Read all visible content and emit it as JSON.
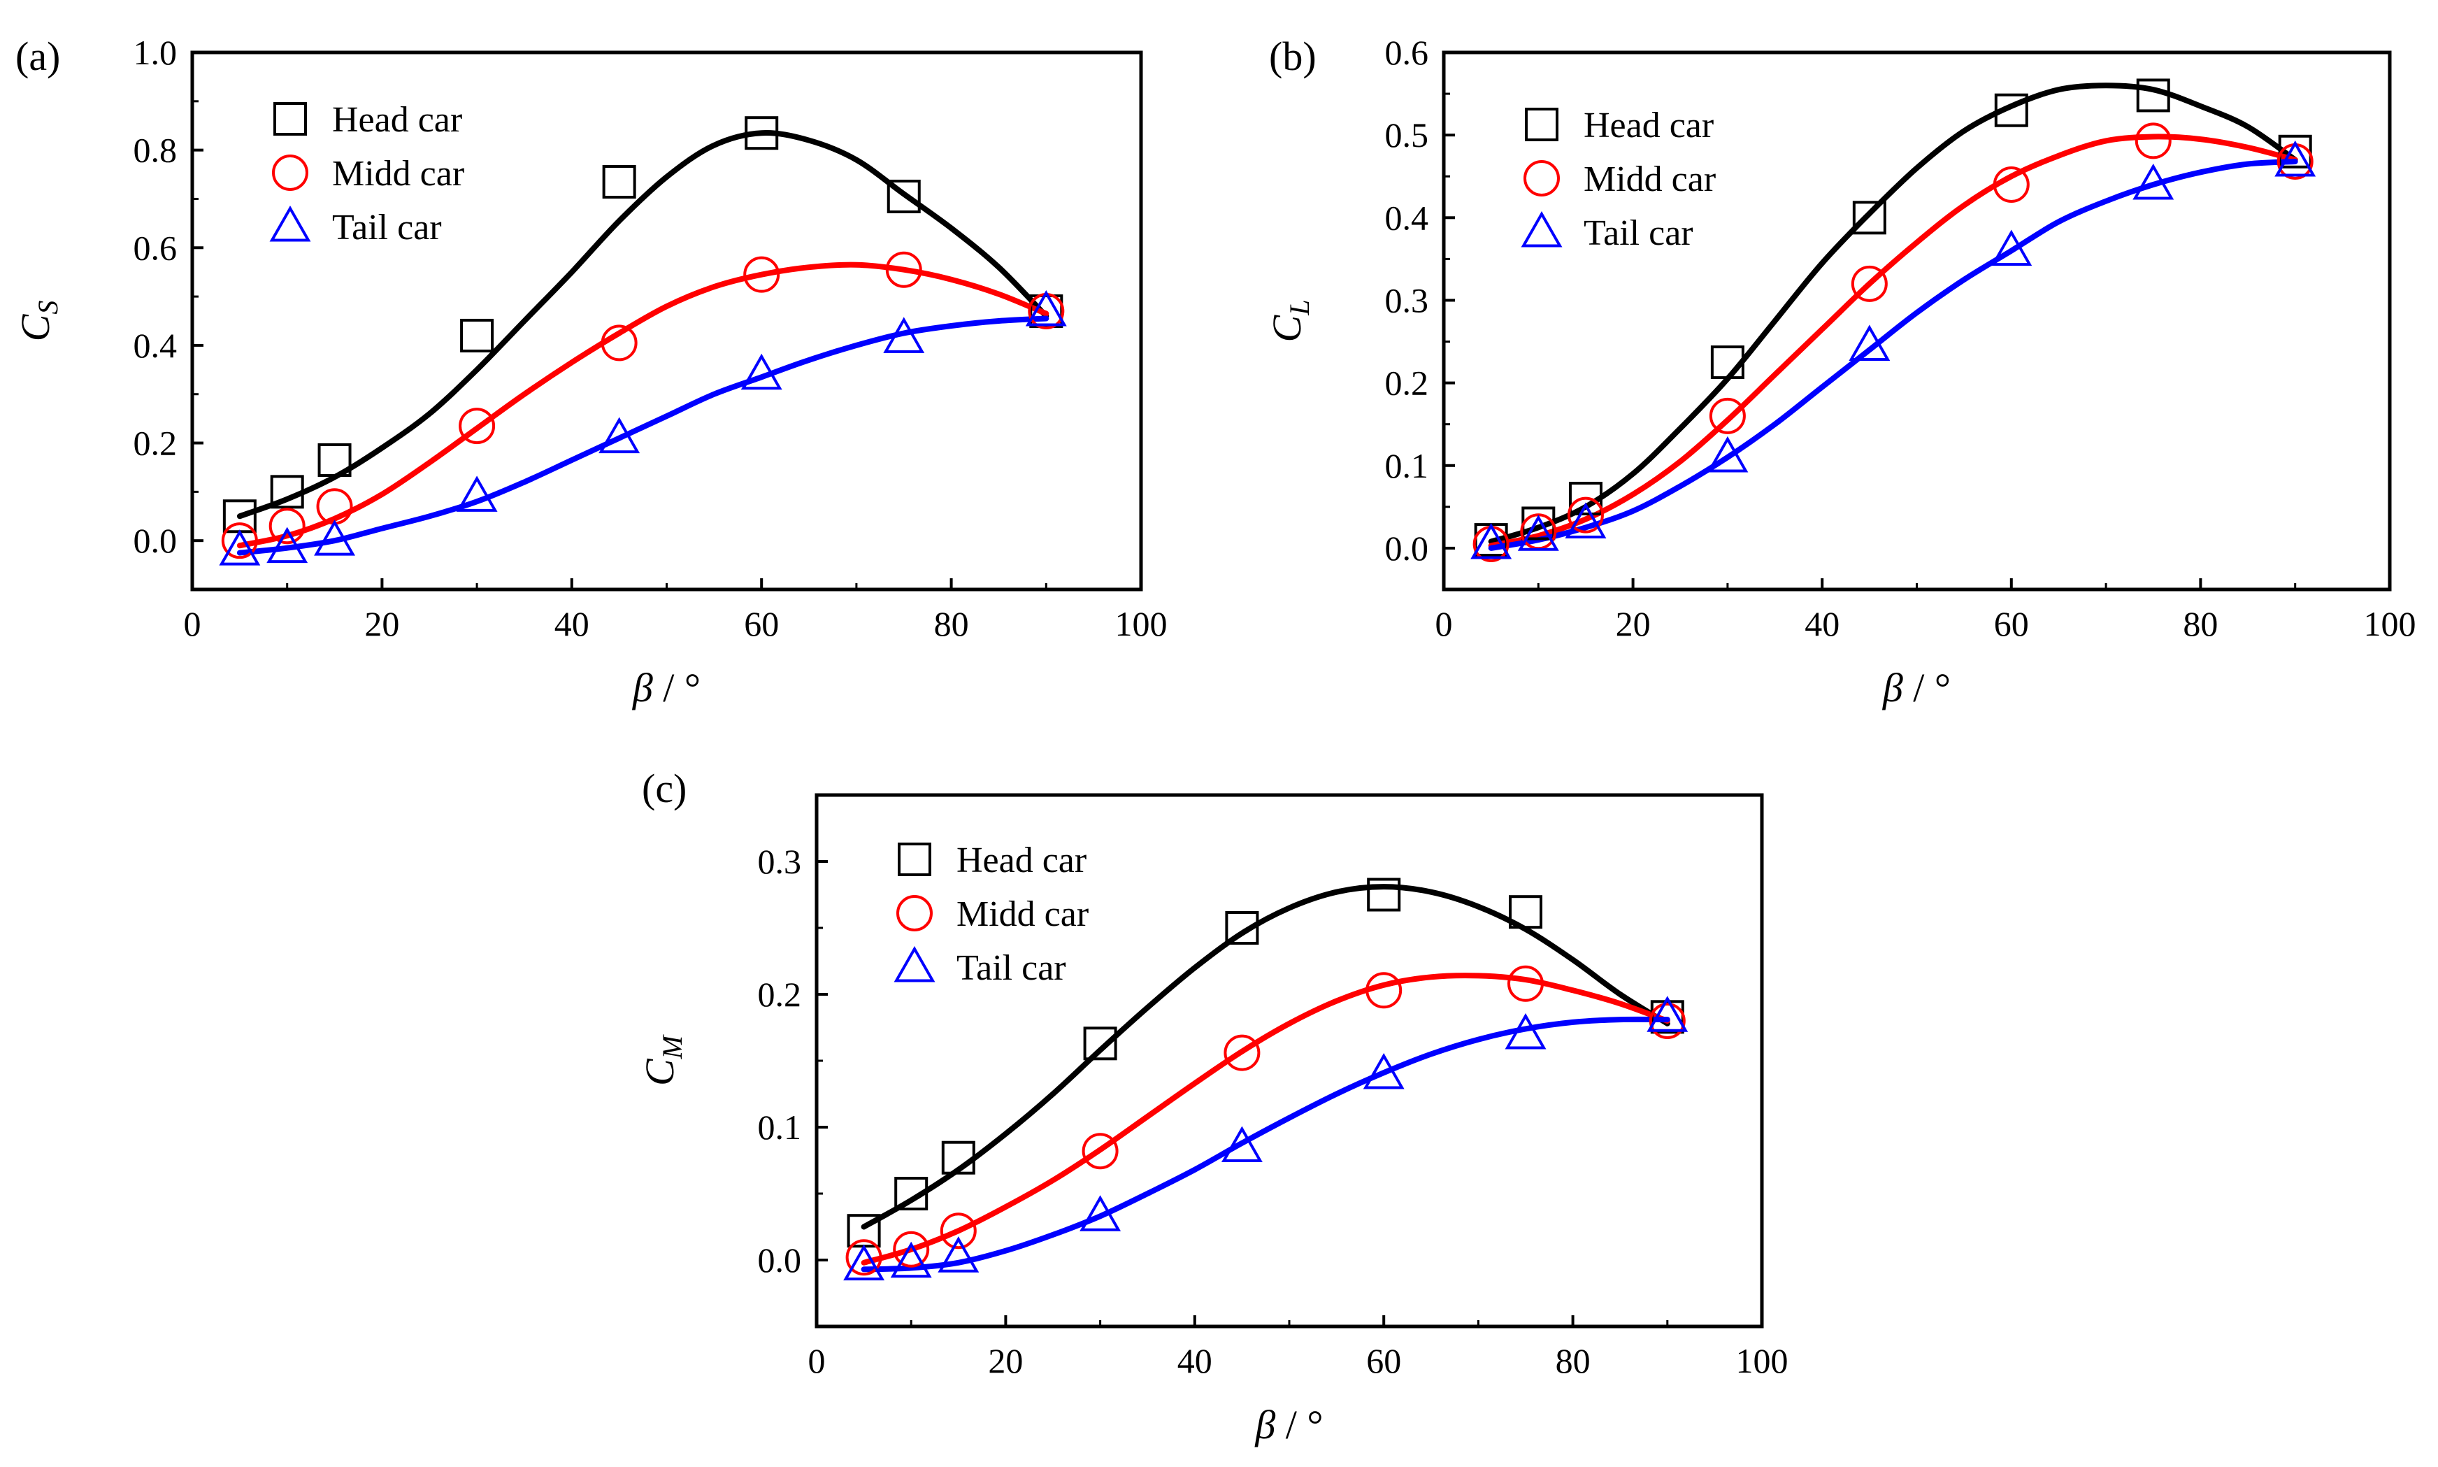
{
  "figure": {
    "xlabel_symbol": "β",
    "xlabel_unit": "/ °",
    "legend_labels": [
      "Head car",
      "Midd car",
      "Tail car"
    ],
    "series_colors": {
      "head": "#000000",
      "midd": "#ff0000",
      "tail": "#0000ff"
    }
  },
  "chart_data": [
    {
      "type": "scatter",
      "panel": "(a)",
      "title": "",
      "xlabel": "β / °",
      "ylabel": "C_S",
      "ylabel_main": "C",
      "ylabel_sub": "S",
      "xlim": [
        0,
        100
      ],
      "ylim": [
        -0.1,
        1.0
      ],
      "xticks": [
        0,
        20,
        40,
        60,
        80,
        100
      ],
      "yticks": [
        0.0,
        0.2,
        0.4,
        0.6,
        0.8,
        1.0
      ],
      "ytick_labels": [
        "0.0",
        "0.2",
        "0.4",
        "0.6",
        "0.8",
        "1.0"
      ],
      "legend_position": "top-left",
      "x": [
        5,
        10,
        15,
        30,
        45,
        60,
        75,
        90
      ],
      "series": [
        {
          "name": "Head car",
          "marker": "square",
          "color": "#000000",
          "values": [
            0.05,
            0.1,
            0.165,
            0.42,
            0.735,
            0.835,
            0.705,
            0.47
          ],
          "fit": [
            [
              5,
              0.05
            ],
            [
              10,
              0.085
            ],
            [
              15,
              0.13
            ],
            [
              20,
              0.19
            ],
            [
              25,
              0.26
            ],
            [
              30,
              0.35
            ],
            [
              35,
              0.45
            ],
            [
              40,
              0.55
            ],
            [
              45,
              0.655
            ],
            [
              50,
              0.745
            ],
            [
              55,
              0.81
            ],
            [
              60,
              0.835
            ],
            [
              65,
              0.82
            ],
            [
              70,
              0.78
            ],
            [
              75,
              0.71
            ],
            [
              80,
              0.64
            ],
            [
              85,
              0.56
            ],
            [
              90,
              0.46
            ]
          ]
        },
        {
          "name": "Midd car",
          "marker": "circle",
          "color": "#ff0000",
          "values": [
            0.0,
            0.03,
            0.07,
            0.235,
            0.405,
            0.545,
            0.555,
            0.47
          ],
          "fit": [
            [
              5,
              -0.01
            ],
            [
              10,
              0.01
            ],
            [
              15,
              0.045
            ],
            [
              20,
              0.095
            ],
            [
              25,
              0.16
            ],
            [
              30,
              0.23
            ],
            [
              35,
              0.3
            ],
            [
              40,
              0.365
            ],
            [
              45,
              0.425
            ],
            [
              50,
              0.48
            ],
            [
              55,
              0.52
            ],
            [
              60,
              0.545
            ],
            [
              65,
              0.56
            ],
            [
              70,
              0.565
            ],
            [
              75,
              0.555
            ],
            [
              80,
              0.535
            ],
            [
              85,
              0.505
            ],
            [
              90,
              0.465
            ]
          ]
        },
        {
          "name": "Tail car",
          "marker": "triangle",
          "color": "#0000ff",
          "values": [
            -0.02,
            -0.015,
            0.0,
            0.09,
            0.21,
            0.34,
            0.415,
            0.47
          ],
          "fit": [
            [
              5,
              -0.025
            ],
            [
              10,
              -0.015
            ],
            [
              15,
              0.0
            ],
            [
              20,
              0.025
            ],
            [
              25,
              0.05
            ],
            [
              30,
              0.08
            ],
            [
              35,
              0.12
            ],
            [
              40,
              0.165
            ],
            [
              45,
              0.21
            ],
            [
              50,
              0.255
            ],
            [
              55,
              0.3
            ],
            [
              60,
              0.335
            ],
            [
              65,
              0.37
            ],
            [
              70,
              0.4
            ],
            [
              75,
              0.425
            ],
            [
              80,
              0.44
            ],
            [
              85,
              0.45
            ],
            [
              90,
              0.455
            ]
          ]
        }
      ]
    },
    {
      "type": "scatter",
      "panel": "(b)",
      "title": "",
      "xlabel": "β / °",
      "ylabel": "C_L",
      "ylabel_main": "C",
      "ylabel_sub": "L",
      "xlim": [
        0,
        100
      ],
      "ylim": [
        -0.05,
        0.6
      ],
      "xticks": [
        0,
        20,
        40,
        60,
        80,
        100
      ],
      "yticks": [
        0.0,
        0.1,
        0.2,
        0.3,
        0.4,
        0.5,
        0.6
      ],
      "ytick_labels": [
        "0.0",
        "0.1",
        "0.2",
        "0.3",
        "0.4",
        "0.5",
        "0.6"
      ],
      "legend_position": "top-left",
      "x": [
        5,
        10,
        15,
        30,
        45,
        60,
        75,
        90
      ],
      "series": [
        {
          "name": "Head car",
          "marker": "square",
          "color": "#000000",
          "values": [
            0.01,
            0.03,
            0.06,
            0.225,
            0.4,
            0.53,
            0.548,
            0.48
          ],
          "fit": [
            [
              5,
              0.008
            ],
            [
              10,
              0.025
            ],
            [
              15,
              0.05
            ],
            [
              20,
              0.09
            ],
            [
              25,
              0.145
            ],
            [
              30,
              0.205
            ],
            [
              35,
              0.275
            ],
            [
              40,
              0.345
            ],
            [
              45,
              0.405
            ],
            [
              50,
              0.46
            ],
            [
              55,
              0.505
            ],
            [
              60,
              0.535
            ],
            [
              65,
              0.555
            ],
            [
              70,
              0.56
            ],
            [
              75,
              0.555
            ],
            [
              80,
              0.535
            ],
            [
              85,
              0.51
            ],
            [
              90,
              0.47
            ]
          ]
        },
        {
          "name": "Midd car",
          "marker": "circle",
          "color": "#ff0000",
          "values": [
            0.005,
            0.02,
            0.04,
            0.16,
            0.32,
            0.44,
            0.493,
            0.468
          ],
          "fit": [
            [
              5,
              0.003
            ],
            [
              10,
              0.015
            ],
            [
              15,
              0.035
            ],
            [
              20,
              0.065
            ],
            [
              25,
              0.105
            ],
            [
              30,
              0.155
            ],
            [
              35,
              0.21
            ],
            [
              40,
              0.265
            ],
            [
              45,
              0.32
            ],
            [
              50,
              0.37
            ],
            [
              55,
              0.415
            ],
            [
              60,
              0.45
            ],
            [
              65,
              0.475
            ],
            [
              70,
              0.493
            ],
            [
              75,
              0.498
            ],
            [
              80,
              0.495
            ],
            [
              85,
              0.485
            ],
            [
              90,
              0.47
            ]
          ]
        },
        {
          "name": "Tail car",
          "marker": "triangle",
          "color": "#0000ff",
          "values": [
            0.005,
            0.015,
            0.03,
            0.11,
            0.245,
            0.36,
            0.44,
            0.468
          ],
          "fit": [
            [
              5,
              0.0
            ],
            [
              10,
              0.01
            ],
            [
              15,
              0.025
            ],
            [
              20,
              0.045
            ],
            [
              25,
              0.075
            ],
            [
              30,
              0.11
            ],
            [
              35,
              0.15
            ],
            [
              40,
              0.195
            ],
            [
              45,
              0.24
            ],
            [
              50,
              0.285
            ],
            [
              55,
              0.325
            ],
            [
              60,
              0.36
            ],
            [
              65,
              0.395
            ],
            [
              70,
              0.42
            ],
            [
              75,
              0.44
            ],
            [
              80,
              0.455
            ],
            [
              85,
              0.465
            ],
            [
              90,
              0.468
            ]
          ]
        }
      ]
    },
    {
      "type": "scatter",
      "panel": "(c)",
      "title": "",
      "xlabel": "β / °",
      "ylabel": "C_M",
      "ylabel_main": "C",
      "ylabel_sub": "M",
      "xlim": [
        0,
        100
      ],
      "ylim": [
        -0.05,
        0.35
      ],
      "xticks": [
        0,
        20,
        40,
        60,
        80,
        100
      ],
      "yticks": [
        0.0,
        0.1,
        0.2,
        0.3
      ],
      "ytick_labels": [
        "0.0",
        "0.1",
        "0.2",
        "0.3"
      ],
      "legend_position": "top-left",
      "x": [
        5,
        10,
        15,
        30,
        45,
        60,
        75,
        90
      ],
      "series": [
        {
          "name": "Head car",
          "marker": "square",
          "color": "#000000",
          "values": [
            0.022,
            0.05,
            0.077,
            0.163,
            0.25,
            0.275,
            0.262,
            0.183
          ],
          "fit": [
            [
              5,
              0.025
            ],
            [
              10,
              0.045
            ],
            [
              15,
              0.068
            ],
            [
              20,
              0.095
            ],
            [
              25,
              0.125
            ],
            [
              30,
              0.158
            ],
            [
              35,
              0.19
            ],
            [
              40,
              0.22
            ],
            [
              45,
              0.246
            ],
            [
              50,
              0.265
            ],
            [
              55,
              0.277
            ],
            [
              60,
              0.281
            ],
            [
              65,
              0.277
            ],
            [
              70,
              0.266
            ],
            [
              75,
              0.249
            ],
            [
              80,
              0.226
            ],
            [
              85,
              0.2
            ],
            [
              90,
              0.178
            ]
          ]
        },
        {
          "name": "Midd car",
          "marker": "circle",
          "color": "#ff0000",
          "values": [
            0.002,
            0.008,
            0.022,
            0.082,
            0.156,
            0.203,
            0.208,
            0.18
          ],
          "fit": [
            [
              5,
              -0.002
            ],
            [
              10,
              0.008
            ],
            [
              15,
              0.022
            ],
            [
              20,
              0.04
            ],
            [
              25,
              0.06
            ],
            [
              30,
              0.083
            ],
            [
              35,
              0.108
            ],
            [
              40,
              0.133
            ],
            [
              45,
              0.157
            ],
            [
              50,
              0.178
            ],
            [
              55,
              0.195
            ],
            [
              60,
              0.207
            ],
            [
              65,
              0.213
            ],
            [
              70,
              0.214
            ],
            [
              75,
              0.211
            ],
            [
              80,
              0.203
            ],
            [
              85,
              0.193
            ],
            [
              90,
              0.18
            ]
          ]
        },
        {
          "name": "Tail car",
          "marker": "triangle",
          "color": "#0000ff",
          "values": [
            -0.004,
            -0.002,
            0.002,
            0.033,
            0.085,
            0.14,
            0.17,
            0.183
          ],
          "fit": [
            [
              5,
              -0.007
            ],
            [
              10,
              -0.006
            ],
            [
              15,
              -0.002
            ],
            [
              20,
              0.007
            ],
            [
              25,
              0.019
            ],
            [
              30,
              0.033
            ],
            [
              35,
              0.05
            ],
            [
              40,
              0.068
            ],
            [
              45,
              0.088
            ],
            [
              50,
              0.107
            ],
            [
              55,
              0.125
            ],
            [
              60,
              0.141
            ],
            [
              65,
              0.155
            ],
            [
              70,
              0.166
            ],
            [
              75,
              0.174
            ],
            [
              80,
              0.179
            ],
            [
              85,
              0.181
            ],
            [
              90,
              0.181
            ]
          ]
        }
      ]
    }
  ]
}
